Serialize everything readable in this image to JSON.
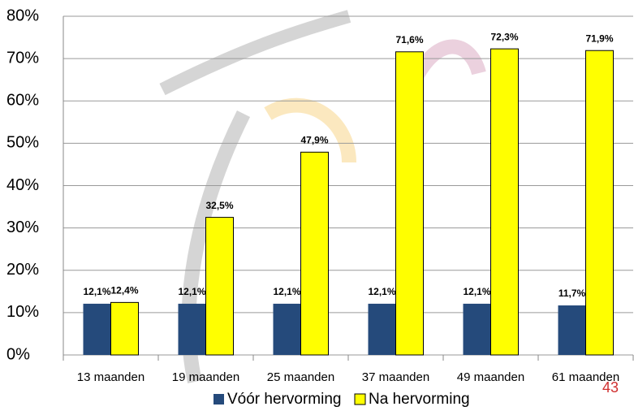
{
  "chart_data": {
    "type": "bar",
    "categories": [
      "13 maanden",
      "19 maanden",
      "25 maanden",
      "37 maanden",
      "49 maanden",
      "61 maanden"
    ],
    "series": [
      {
        "name": "Vóór hervorming",
        "color": "#254a7b",
        "values": [
          12.1,
          12.1,
          12.1,
          12.1,
          12.1,
          11.7
        ],
        "value_labels": [
          "12,1%",
          "12,1%",
          "12,1%",
          "12,1%",
          "12,1%",
          "11,7%"
        ]
      },
      {
        "name": "Na hervorming",
        "color": "#ffff00",
        "values": [
          12.4,
          32.5,
          47.9,
          71.6,
          72.3,
          71.9
        ],
        "value_labels": [
          "12,4%",
          "32,5%",
          "47,9%",
          "71,6%",
          "72,3%",
          "71,9%"
        ]
      }
    ],
    "ylim": [
      0,
      80
    ],
    "yticks": [
      {
        "value": 0,
        "label": "0%"
      },
      {
        "value": 10,
        "label": "10%"
      },
      {
        "value": 20,
        "label": "20%"
      },
      {
        "value": 30,
        "label": "30%"
      },
      {
        "value": 40,
        "label": "40%"
      },
      {
        "value": 50,
        "label": "50%"
      },
      {
        "value": 60,
        "label": "60%"
      },
      {
        "value": 70,
        "label": "70%"
      },
      {
        "value": 80,
        "label": "80%"
      }
    ],
    "grid": true,
    "legend": "bottom"
  },
  "page_number": "43"
}
